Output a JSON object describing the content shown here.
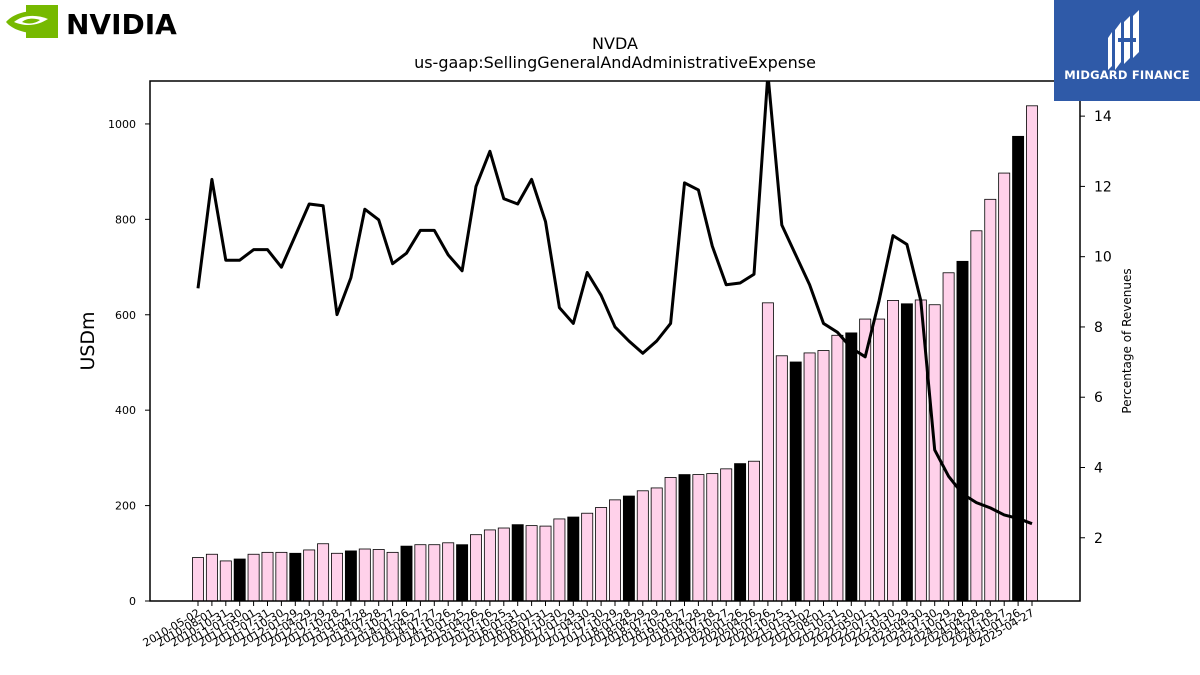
{
  "header": {
    "nvidia_logo_text": "NVIDIA",
    "midgard_logo_text": "MIDGARD FINANCE"
  },
  "colors": {
    "bar_default": "#ffd1ea",
    "bar_highlight": "#000000",
    "line": "#000000",
    "nvidia_green": "#76b900",
    "midgard_blue": "#2f5aa8"
  },
  "chart_data": {
    "type": "bar",
    "title": "NVDA",
    "subtitle": "us-gaap:SellingGeneralAndAdministrativeExpense",
    "ylabel": "USDm",
    "y2label": "Percentage of Revenues",
    "ylim": [
      0,
      1090
    ],
    "y2lim": [
      0.2,
      15
    ],
    "yticks": [
      0,
      200,
      400,
      600,
      800,
      1000
    ],
    "y2ticks": [
      2,
      4,
      6,
      8,
      10,
      12,
      14
    ],
    "categories": [
      "2010-05-02",
      "2010-08-01",
      "2010-10-31",
      "2011-01-30",
      "2011-05-01",
      "2011-07-31",
      "2011-10-30",
      "2012-01-29",
      "2012-04-29",
      "2012-07-29",
      "2012-10-28",
      "2013-01-27",
      "2013-04-28",
      "2013-07-28",
      "2013-10-27",
      "2014-01-26",
      "2014-04-27",
      "2014-07-27",
      "2014-10-26",
      "2015-01-25",
      "2015-04-26",
      "2015-07-26",
      "2015-10-25",
      "2016-01-31",
      "2016-05-01",
      "2016-07-31",
      "2016-10-30",
      "2017-01-29",
      "2017-04-30",
      "2017-07-30",
      "2017-10-29",
      "2018-01-28",
      "2018-04-29",
      "2018-07-29",
      "2018-10-28",
      "2019-01-27",
      "2019-04-28",
      "2019-07-28",
      "2019-10-27",
      "2020-01-26",
      "2020-04-26",
      "2020-07-26",
      "2020-10-25",
      "2021-01-31",
      "2021-05-02",
      "2021-08-01",
      "2021-10-31",
      "2022-01-30",
      "2022-05-01",
      "2022-07-31",
      "2022-10-30",
      "2023-01-29",
      "2023-04-30",
      "2023-07-30",
      "2023-10-29",
      "2024-01-28",
      "2024-04-28",
      "2024-07-28",
      "2024-10-27",
      "2025-01-26",
      "2025-04-27"
    ],
    "bar_values": [
      91,
      98,
      84,
      88,
      98,
      102,
      102,
      100,
      107,
      120,
      100,
      105,
      109,
      108,
      102,
      115,
      118,
      118,
      122,
      118,
      139,
      149,
      153,
      160,
      158,
      157,
      172,
      176,
      184,
      196,
      212,
      220,
      231,
      237,
      259,
      265,
      265,
      267,
      277,
      288,
      293,
      625,
      514,
      501,
      520,
      525,
      557,
      562,
      591,
      591,
      630,
      623,
      631,
      621,
      688,
      712,
      776,
      842,
      897,
      974,
      1038
    ],
    "highlight_indices": [
      3,
      7,
      11,
      15,
      19,
      23,
      27,
      31,
      35,
      39,
      43,
      47,
      51,
      55,
      59
    ],
    "line_label": "Percentage of Revenues",
    "line_values": [
      9.1,
      12.2,
      9.9,
      9.9,
      10.2,
      10.2,
      9.7,
      10.6,
      11.5,
      11.45,
      8.35,
      9.4,
      11.35,
      11.05,
      9.8,
      10.1,
      10.75,
      10.75,
      10.05,
      9.6,
      12.0,
      13.0,
      11.65,
      11.5,
      12.2,
      11.0,
      8.55,
      8.1,
      9.55,
      8.9,
      8.0,
      7.6,
      7.25,
      7.6,
      8.1,
      12.1,
      11.9,
      10.3,
      9.2,
      9.25,
      9.5,
      15.2,
      10.9,
      10.05,
      9.2,
      8.1,
      7.85,
      7.4,
      7.15,
      8.75,
      10.6,
      10.35,
      8.75,
      4.5,
      3.75,
      3.25,
      3.0,
      2.85,
      2.65,
      2.55,
      2.4
    ]
  }
}
